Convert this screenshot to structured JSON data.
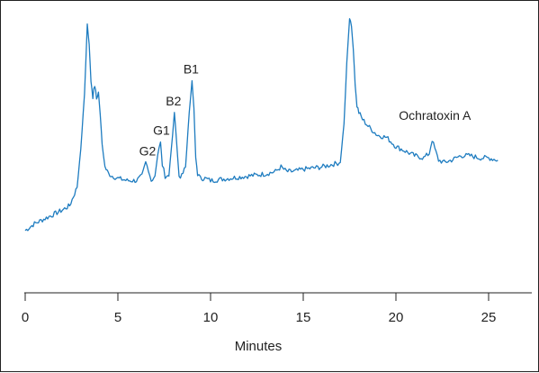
{
  "chart_data": {
    "type": "line",
    "title": "",
    "xlabel": "Minutes",
    "ylabel": "",
    "xlim": [
      0,
      27
    ],
    "ylim": [
      0,
      100
    ],
    "x_ticks": [
      0,
      5,
      10,
      15,
      20,
      25
    ],
    "x_tick_labels": [
      "0",
      "5",
      "10",
      "15",
      "20",
      "25"
    ],
    "grid": false,
    "line_color": "#1e7cc0",
    "series": [
      {
        "x": [
          0,
          0.5,
          1.0,
          1.5,
          2.0,
          2.4,
          2.8,
          3.0,
          3.2,
          3.35,
          3.45,
          3.55,
          3.65,
          3.75,
          3.85,
          3.95,
          4.05,
          4.15,
          4.3,
          4.5,
          4.7,
          5.0,
          5.5,
          6.0,
          6.3,
          6.5,
          6.65,
          6.8,
          7.0,
          7.15,
          7.3,
          7.4,
          7.55,
          7.75,
          7.95,
          8.05,
          8.15,
          8.3,
          8.45,
          8.65,
          8.85,
          9.0,
          9.1,
          9.2,
          9.3,
          9.45,
          9.7,
          10.0,
          11.0,
          12.0,
          13.0,
          13.5,
          13.8,
          14.1,
          14.5,
          15.0,
          16.0,
          16.5,
          17.0,
          17.2,
          17.35,
          17.5,
          17.6,
          17.7,
          17.8,
          17.9,
          18.0,
          18.2,
          18.5,
          19.0,
          19.5,
          20.0,
          20.5,
          21.0,
          21.5,
          21.8,
          21.95,
          22.1,
          22.3,
          22.6,
          23.0,
          23.5,
          24.0,
          24.5,
          25.0,
          25.5
        ],
        "y": [
          6,
          9,
          11,
          13,
          15,
          17,
          25,
          42,
          66,
          97,
          88,
          72,
          65,
          70,
          64,
          67,
          57,
          44,
          34,
          31,
          30,
          29,
          28,
          28,
          30,
          36,
          33,
          28,
          30,
          39,
          45,
          35,
          30,
          30,
          48,
          58,
          47,
          30,
          30,
          34,
          58,
          72,
          60,
          38,
          31,
          29,
          29,
          28,
          29,
          30,
          31,
          32,
          34,
          32,
          32,
          33,
          34,
          35,
          36,
          53,
          80,
          100,
          96,
          86,
          70,
          61,
          58,
          55,
          52,
          48,
          47,
          43,
          41,
          39,
          38,
          40,
          46,
          42,
          37,
          36,
          37,
          39,
          39,
          38,
          38,
          37
        ]
      }
    ],
    "annotations": [
      {
        "text": "G2",
        "x": 6.65,
        "y": 36
      },
      {
        "text": "G1",
        "x": 7.4,
        "y": 45
      },
      {
        "text": "B2",
        "x": 8.05,
        "y": 58
      },
      {
        "text": "B1",
        "x": 9.0,
        "y": 72
      },
      {
        "text": "Ochratoxin A",
        "x": 22.0,
        "y": 46
      }
    ]
  }
}
